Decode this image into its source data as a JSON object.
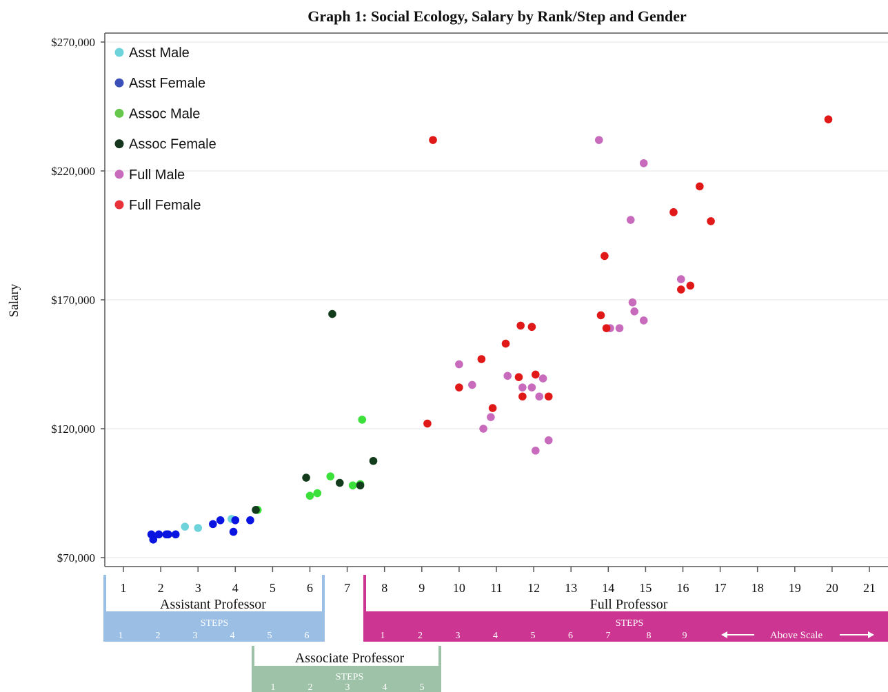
{
  "chart_data": {
    "type": "scatter",
    "title": "Graph 1: Social Ecology, Salary by Rank/Step and Gender",
    "xlabel": "",
    "ylabel": "Salary",
    "xlim": [
      0.5,
      21.5
    ],
    "ylim": [
      66000,
      274000
    ],
    "x_ticks": [
      "1",
      "2",
      "3",
      "4",
      "5",
      "6",
      "7",
      "8",
      "9",
      "10",
      "11",
      "12",
      "13",
      "14",
      "15",
      "16",
      "17",
      "18",
      "19",
      "20",
      "21"
    ],
    "y_ticks": [
      {
        "value": 70000,
        "label": "$70,000"
      },
      {
        "value": 120000,
        "label": "$120,000"
      },
      {
        "value": 170000,
        "label": "$170,000"
      },
      {
        "value": 220000,
        "label": "$220,000"
      },
      {
        "value": 270000,
        "label": "$270,000"
      }
    ],
    "grid": "horizontal",
    "legend_position": "top-left",
    "series": [
      {
        "name": "Asst Male",
        "color": "#6fd3dc",
        "legend_color": "#6fd3dc",
        "points": [
          [
            2.65,
            82000
          ],
          [
            3.0,
            81500
          ],
          [
            3.9,
            85000
          ]
        ]
      },
      {
        "name": "Asst Female",
        "color": "#0a14e0",
        "legend_color": "#3b4fb8",
        "points": [
          [
            1.75,
            79000
          ],
          [
            1.8,
            77000
          ],
          [
            1.95,
            79000
          ],
          [
            2.15,
            79000
          ],
          [
            2.2,
            79000
          ],
          [
            2.4,
            79000
          ],
          [
            3.4,
            83000
          ],
          [
            3.6,
            84500
          ],
          [
            3.95,
            80000
          ],
          [
            4.0,
            84500
          ],
          [
            4.4,
            84500
          ]
        ]
      },
      {
        "name": "Assoc Male",
        "color": "#3be03b",
        "legend_color": "#66c74c",
        "points": [
          [
            4.6,
            88500
          ],
          [
            6.0,
            94000
          ],
          [
            6.2,
            95000
          ],
          [
            6.55,
            101500
          ],
          [
            7.15,
            98000
          ],
          [
            7.35,
            98500
          ],
          [
            7.4,
            123500
          ]
        ]
      },
      {
        "name": "Assoc Female",
        "color": "#123c1c",
        "legend_color": "#15351c",
        "points": [
          [
            4.55,
            88500
          ],
          [
            5.9,
            101000
          ],
          [
            6.6,
            164500
          ],
          [
            6.8,
            99000
          ],
          [
            7.35,
            98000
          ],
          [
            7.7,
            107500
          ]
        ]
      },
      {
        "name": "Full Male",
        "color": "#c86bbd",
        "legend_color": "#c86bbd",
        "points": [
          [
            10.0,
            145000
          ],
          [
            10.35,
            137000
          ],
          [
            10.65,
            120000
          ],
          [
            10.85,
            124500
          ],
          [
            11.3,
            140500
          ],
          [
            11.7,
            136000
          ],
          [
            11.95,
            136000
          ],
          [
            12.05,
            111500
          ],
          [
            12.15,
            132500
          ],
          [
            12.25,
            139500
          ],
          [
            12.4,
            115500
          ],
          [
            13.75,
            232000
          ],
          [
            14.05,
            159000
          ],
          [
            14.3,
            159000
          ],
          [
            14.6,
            201000
          ],
          [
            14.65,
            169000
          ],
          [
            14.7,
            165500
          ],
          [
            14.95,
            223000
          ],
          [
            14.95,
            162000
          ],
          [
            15.95,
            178000
          ]
        ]
      },
      {
        "name": "Full Female",
        "color": "#e01818",
        "legend_color": "#e8323a",
        "points": [
          [
            9.15,
            122000
          ],
          [
            9.3,
            232000
          ],
          [
            10.0,
            136000
          ],
          [
            10.6,
            147000
          ],
          [
            10.9,
            128000
          ],
          [
            11.25,
            153000
          ],
          [
            11.6,
            140000
          ],
          [
            11.65,
            160000
          ],
          [
            11.7,
            132500
          ],
          [
            11.95,
            159500
          ],
          [
            12.05,
            141000
          ],
          [
            12.4,
            132500
          ],
          [
            13.8,
            164000
          ],
          [
            13.9,
            187000
          ],
          [
            13.95,
            159000
          ],
          [
            15.75,
            204000
          ],
          [
            15.95,
            174000
          ],
          [
            16.2,
            175500
          ],
          [
            16.45,
            214000
          ],
          [
            16.75,
            200500
          ],
          [
            19.9,
            240000
          ]
        ]
      }
    ]
  },
  "ranks": {
    "assistant": {
      "label": "Assistant Professor",
      "steps_label": "STEPS",
      "steps": [
        "1",
        "2",
        "3",
        "4",
        "5",
        "6"
      ],
      "color": "#9bbfe4"
    },
    "associate": {
      "label": "Associate Professor",
      "steps_label": "STEPS",
      "steps": [
        "1",
        "2",
        "3",
        "4",
        "5"
      ],
      "color": "#9ec2a8"
    },
    "full": {
      "label": "Full Professor",
      "steps_label": "STEPS",
      "steps": [
        "1",
        "2",
        "3",
        "4",
        "5",
        "6",
        "7",
        "8",
        "9"
      ],
      "above_scale_label": "Above Scale",
      "color": "#cc3591"
    }
  }
}
